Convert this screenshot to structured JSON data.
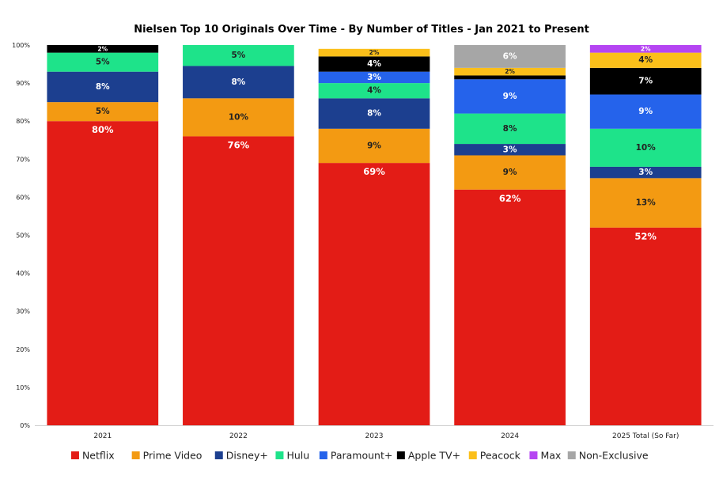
{
  "chart_data": {
    "type": "bar",
    "stacked": true,
    "title": "Nielsen Top 10 Originals Over Time - By Number of Titles - Jan 2021 to Present",
    "xlabel": "",
    "ylabel": "",
    "ylim": [
      0,
      100
    ],
    "ytick_labels": [
      "0%",
      "10%",
      "20%",
      "30%",
      "40%",
      "50%",
      "60%",
      "70%",
      "80%",
      "90%",
      "100%"
    ],
    "grid": false,
    "legend_position": "bottom",
    "categories": [
      "2021",
      "2022",
      "2023",
      "2024",
      "2025 Total (So Far)"
    ],
    "series": [
      {
        "name": "Netflix",
        "color": "#e31c16",
        "values": [
          80,
          76,
          69,
          62,
          52
        ],
        "labels": [
          "80%",
          "76%",
          "69%",
          "62%",
          "52%"
        ]
      },
      {
        "name": "Prime Video",
        "color": "#f39a12",
        "values": [
          5,
          10,
          9,
          9,
          13
        ],
        "labels": [
          "5%",
          "10%",
          "9%",
          "9%",
          "13%"
        ]
      },
      {
        "name": "Disney+",
        "color": "#1c3f8f",
        "values": [
          8,
          8.5,
          8,
          3,
          3
        ],
        "labels": [
          "8%",
          "8%",
          "8%",
          "3%",
          "3%"
        ]
      },
      {
        "name": "Hulu",
        "color": "#1ee38a",
        "values": [
          5,
          5.5,
          4,
          8,
          10
        ],
        "labels": [
          "5%",
          "5%",
          "4%",
          "8%",
          "10%"
        ]
      },
      {
        "name": "Paramount+",
        "color": "#2563eb",
        "values": [
          0,
          0,
          3,
          9,
          9
        ],
        "labels": [
          "",
          "",
          "3%",
          "9%",
          "9%"
        ]
      },
      {
        "name": "Apple TV+",
        "color": "#000000",
        "values": [
          2,
          0,
          4,
          1,
          7
        ],
        "labels": [
          "2%",
          "",
          "4%",
          "",
          "7%"
        ]
      },
      {
        "name": "Peacock",
        "color": "#fbbf1a",
        "values": [
          0,
          0,
          2,
          2,
          4
        ],
        "labels": [
          "",
          "",
          "2%",
          "2%",
          "4%"
        ]
      },
      {
        "name": "Max",
        "color": "#b545f2",
        "values": [
          0,
          0,
          0,
          0,
          2
        ],
        "labels": [
          "",
          "",
          "",
          "",
          "2%"
        ]
      },
      {
        "name": "Non-Exclusive",
        "color": "#a6a6a6",
        "values": [
          0,
          0,
          0,
          6,
          0
        ],
        "labels": [
          "",
          "",
          "",
          "6%",
          ""
        ]
      }
    ]
  }
}
